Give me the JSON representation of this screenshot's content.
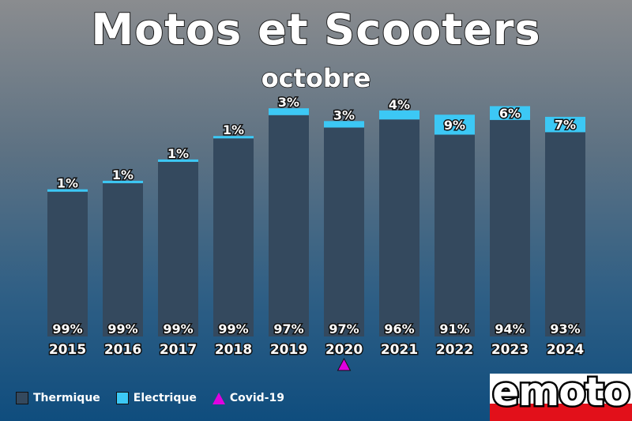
{
  "title": "Motos et Scooters",
  "subtitle": "octobre",
  "legend": {
    "thermique": "Thermique",
    "electrique": "Electrique",
    "covid": "Covid-19"
  },
  "logo": {
    "text": "emoto"
  },
  "colors": {
    "thermique": "#34495e",
    "electrique": "#3cc8f5",
    "covid": "#e000e0"
  },
  "chart_data": {
    "type": "bar",
    "stacked": true,
    "categories": [
      "2015",
      "2016",
      "2017",
      "2018",
      "2019",
      "2020",
      "2021",
      "2022",
      "2023",
      "2024"
    ],
    "series": [
      {
        "name": "Thermique",
        "values": [
          99,
          99,
          99,
          99,
          97,
          97,
          96,
          91,
          94,
          93
        ]
      },
      {
        "name": "Electrique",
        "values": [
          1,
          1,
          1,
          1,
          3,
          3,
          4,
          9,
          6,
          7
        ]
      }
    ],
    "totals_relative": [
      69,
      73,
      83,
      94,
      107,
      101,
      106,
      104,
      108,
      103
    ],
    "labels_thermique": [
      "99%",
      "99%",
      "99%",
      "99%",
      "97%",
      "97%",
      "96%",
      "91%",
      "94%",
      "93%"
    ],
    "labels_electrique": [
      "1%",
      "1%",
      "1%",
      "1%",
      "3%",
      "3%",
      "4%",
      "9%",
      "6%",
      "7%"
    ],
    "annotations": [
      {
        "category": "2020",
        "marker": "triangle",
        "label": "Covid-19"
      }
    ],
    "legend_position": "bottom-left",
    "grid": false
  }
}
